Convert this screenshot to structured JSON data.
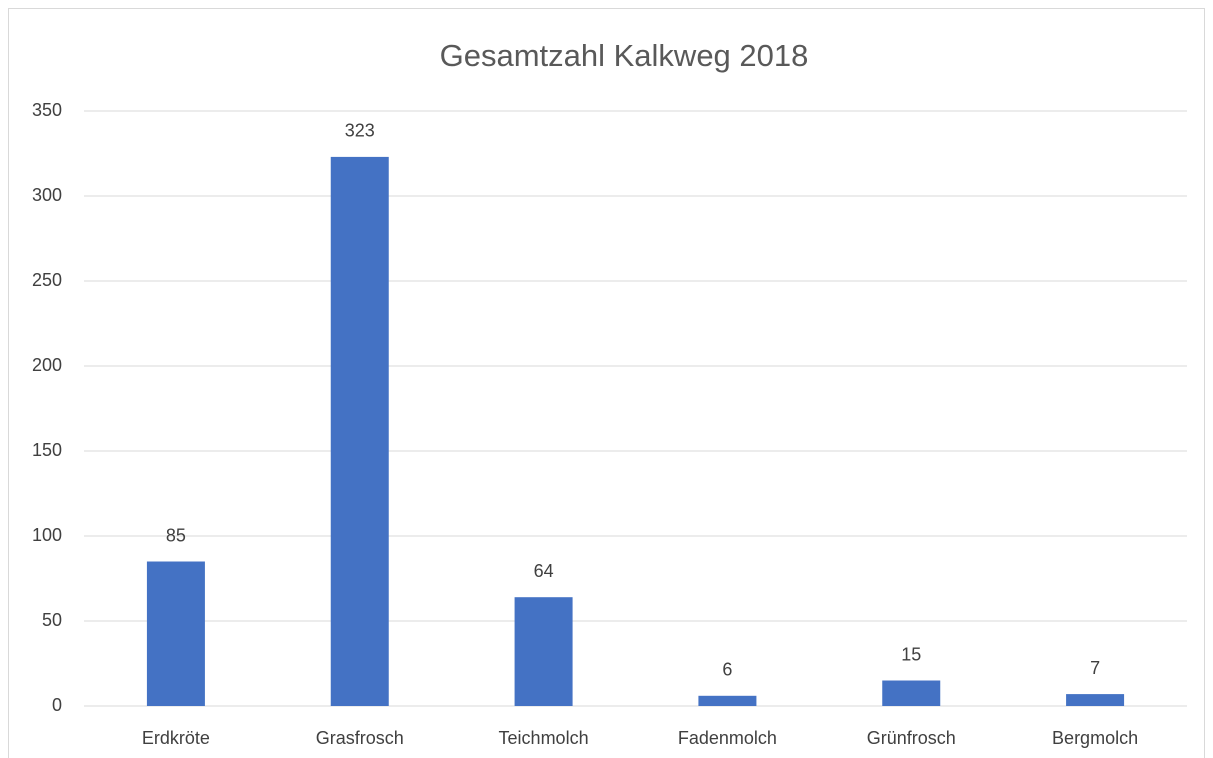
{
  "chart_data": {
    "type": "bar",
    "title": "Gesamtzahl Kalkweg 2018",
    "categories": [
      "Erdkröte",
      "Grasfrosch",
      "Teichmolch",
      "Fadenmolch",
      "Grünfrosch",
      "Bergmolch"
    ],
    "values": [
      85,
      323,
      64,
      6,
      15,
      7
    ],
    "color": "#4472c4",
    "ylim": [
      0,
      350
    ],
    "yticks": [
      0,
      50,
      100,
      150,
      200,
      250,
      300,
      350
    ],
    "grid": true
  }
}
